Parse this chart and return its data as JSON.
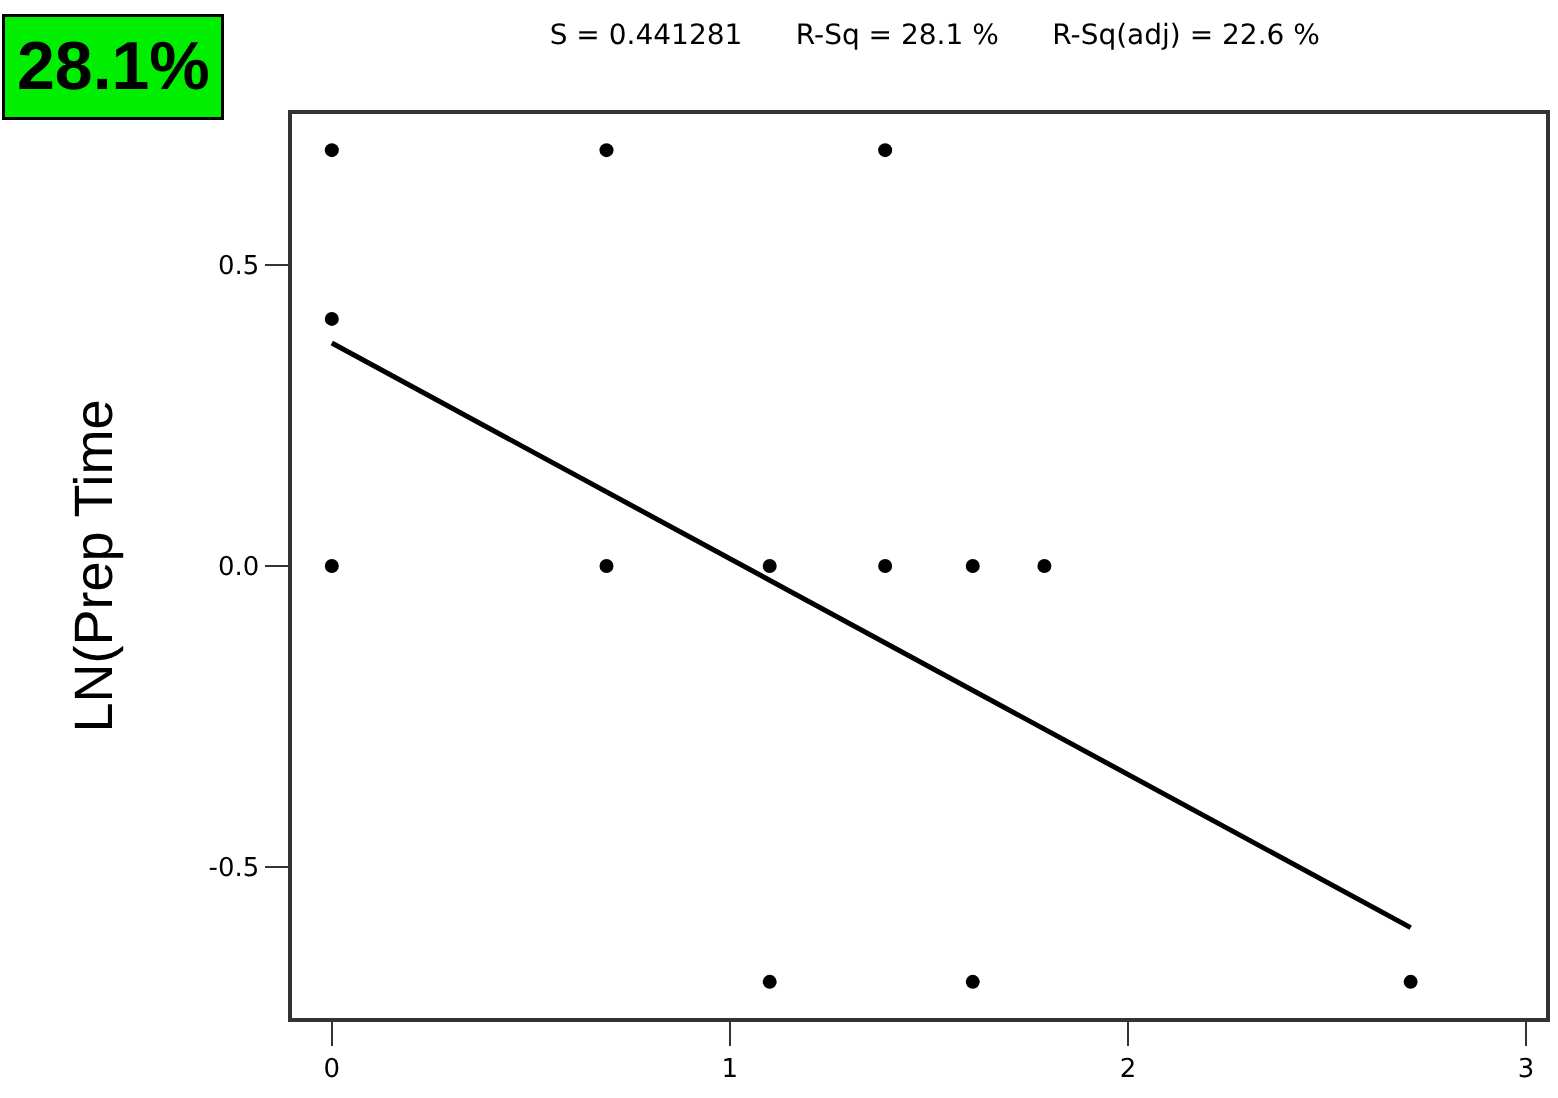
{
  "chart_data": {
    "type": "scatter",
    "title": "S = 0.441281      R-Sq = 28.1 %      R-Sq(adj) = 22.6 %",
    "ylabel": "LN(Prep Time",
    "annotations": [
      "28.1%"
    ],
    "series": [
      {
        "color": "#000000",
        "marker": "circle",
        "x": [
          0,
          0.69,
          1.39,
          0,
          0,
          0.69,
          1.1,
          1.39,
          1.61,
          1.79,
          1.1,
          1.61,
          2.71
        ],
        "values": [
          0.69,
          0.69,
          0.69,
          0.41,
          0,
          0,
          0,
          0,
          0,
          0,
          -0.69,
          -0.69,
          -0.69
        ]
      },
      {
        "type": "line",
        "color": "#000000",
        "x": [
          0,
          2.71
        ],
        "values": [
          0.37,
          -0.6
        ]
      }
    ],
    "xlim": [
      -0.1,
      3.05
    ],
    "xticks": [
      0,
      1,
      2,
      3
    ],
    "ylim": [
      -0.75,
      0.75
    ],
    "yticks": [
      -0.5,
      {
        "value": 0,
        "label": "0.0"
      },
      0.5
    ],
    "legend": false
  }
}
